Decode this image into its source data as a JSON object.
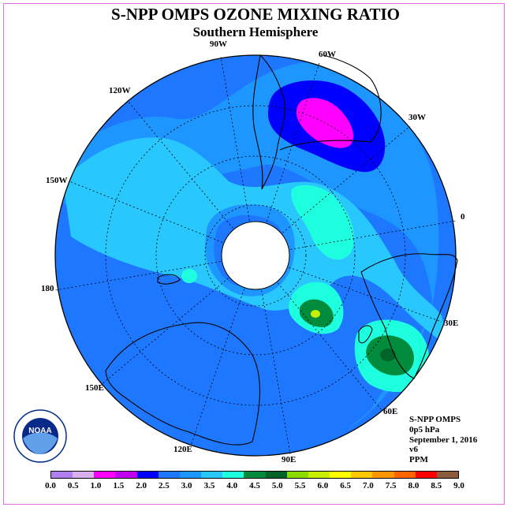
{
  "title": "S-NPP OMPS OZONE MIXING RATIO",
  "subtitle": "Southern Hemisphere",
  "longitude_labels": {
    "lon_90w": "90W",
    "lon_60w": "60W",
    "lon_30w": "30W",
    "lon_0": "0",
    "lon_30e": "30E",
    "lon_60e": "60E",
    "lon_90e": "90E",
    "lon_120e": "120E",
    "lon_150e": "150E",
    "lon_180": "180",
    "lon_150w": "150W",
    "lon_120w": "120W"
  },
  "info": {
    "instrument": "S-NPP OMPS",
    "level": "0p5 hPa",
    "date": "September 1, 2016",
    "version": "v6",
    "units": "PPM"
  },
  "logo_text": "NOAA",
  "colorbar": {
    "ticks": [
      "0.0",
      "0.5",
      "1.0",
      "1.5",
      "2.0",
      "2.5",
      "3.0",
      "3.5",
      "4.0",
      "4.5",
      "5.0",
      "5.5",
      "6.0",
      "6.5",
      "7.0",
      "7.5",
      "8.0",
      "8.5",
      "9.0"
    ],
    "colors": [
      "#b080f0",
      "#d8b0f0",
      "#ff00ff",
      "#c000f0",
      "#0000ff",
      "#1e78ff",
      "#1e96ff",
      "#28c8ff",
      "#1effe0",
      "#008c3c",
      "#006428",
      "#8cdc00",
      "#c8f000",
      "#ffff00",
      "#ffc800",
      "#ff9600",
      "#ff6400",
      "#ff0000",
      "#8c5a3c"
    ]
  }
}
